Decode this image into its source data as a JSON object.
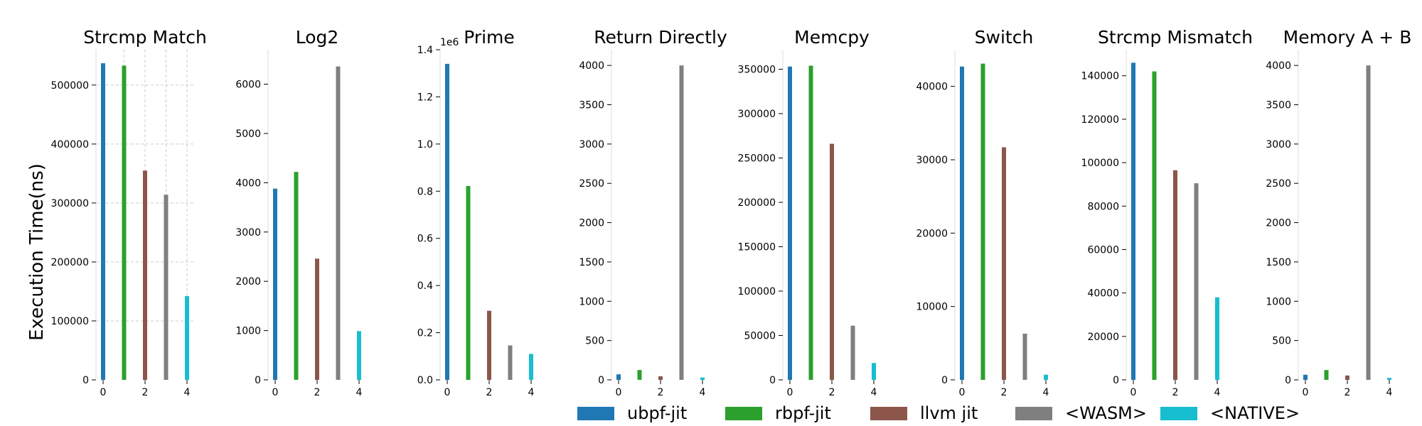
{
  "figure": {
    "ylabel": "Execution Time(ns)",
    "legend_placement": "bottom-center"
  },
  "legend": [
    {
      "label": "ubpf-jit",
      "color": "#1f77b4"
    },
    {
      "label": "rbpf-jit",
      "color": "#2ca02c"
    },
    {
      "label": "llvm jit",
      "color": "#8c564b"
    },
    {
      "label": "<WASM>",
      "color": "#7f7f7f"
    },
    {
      "label": "<NATIVE>",
      "color": "#17becf"
    }
  ],
  "chart_data": [
    {
      "type": "bar",
      "title": "Strcmp Match",
      "x": [
        0,
        1,
        2,
        3,
        4
      ],
      "values": [
        537000,
        533000,
        355000,
        314000,
        142000
      ],
      "ylim": [
        0,
        560000
      ],
      "yticks": [
        0,
        100000,
        200000,
        300000,
        400000,
        500000
      ],
      "ytick_labels": [
        "0",
        "100000",
        "200000",
        "300000",
        "400000",
        "500000"
      ],
      "xticks": [
        "0",
        "2",
        "4"
      ],
      "grid": true,
      "ylabel": "Execution Time(ns)"
    },
    {
      "type": "bar",
      "title": "Log2",
      "x": [
        0,
        1,
        2,
        3,
        4
      ],
      "values": [
        3880,
        4220,
        2460,
        6360,
        990
      ],
      "ylim": [
        0,
        6700
      ],
      "yticks": [
        0,
        1000,
        2000,
        3000,
        4000,
        5000,
        6000
      ],
      "ytick_labels": [
        "0",
        "1000",
        "2000",
        "3000",
        "4000",
        "5000",
        "6000"
      ],
      "xticks": [
        "0",
        "2",
        "4"
      ],
      "grid": false
    },
    {
      "type": "bar",
      "title": "Prime",
      "x": [
        0,
        1,
        2,
        3,
        4
      ],
      "values": [
        1340000,
        822000,
        293000,
        146000,
        110000
      ],
      "ylim": [
        0,
        1400000
      ],
      "yticks": [
        0,
        200000,
        400000,
        600000,
        800000,
        1000000,
        1200000,
        1400000
      ],
      "ytick_labels": [
        "0.0",
        "0.2",
        "0.4",
        "0.6",
        "0.8",
        "1.0",
        "1.2",
        "1.4"
      ],
      "offset_label": "1e6",
      "xticks": [
        "0",
        "2",
        "4"
      ],
      "grid": false
    },
    {
      "type": "bar",
      "title": "Return Directly",
      "x": [
        0,
        1,
        2,
        3,
        4
      ],
      "values": [
        70,
        125,
        45,
        4000,
        30
      ],
      "ylim": [
        0,
        4200
      ],
      "yticks": [
        0,
        500,
        1000,
        1500,
        2000,
        2500,
        3000,
        3500,
        4000
      ],
      "ytick_labels": [
        "0",
        "500",
        "1000",
        "1500",
        "2000",
        "2500",
        "3000",
        "3500",
        "4000"
      ],
      "xticks": [
        "0",
        "2",
        "4"
      ],
      "grid": false
    },
    {
      "type": "bar",
      "title": "Memcpy",
      "x": [
        0,
        1,
        2,
        3,
        4
      ],
      "values": [
        353000,
        354000,
        266000,
        61000,
        19000
      ],
      "ylim": [
        0,
        372000
      ],
      "yticks": [
        0,
        50000,
        100000,
        150000,
        200000,
        250000,
        300000,
        350000
      ],
      "ytick_labels": [
        "0",
        "50000",
        "100000",
        "150000",
        "200000",
        "250000",
        "300000",
        "350000"
      ],
      "xticks": [
        "0",
        "2",
        "4"
      ],
      "grid": false
    },
    {
      "type": "bar",
      "title": "Switch",
      "x": [
        0,
        1,
        2,
        3,
        4
      ],
      "values": [
        42700,
        43100,
        31700,
        6300,
        700
      ],
      "ylim": [
        0,
        45000
      ],
      "yticks": [
        0,
        10000,
        20000,
        30000,
        40000
      ],
      "ytick_labels": [
        "0",
        "10000",
        "20000",
        "30000",
        "40000"
      ],
      "xticks": [
        "0",
        "2",
        "4"
      ],
      "grid": false
    },
    {
      "type": "bar",
      "title": "Strcmp Mismatch",
      "x": [
        0,
        1,
        2,
        3,
        4
      ],
      "values": [
        146000,
        142000,
        96500,
        90500,
        38000
      ],
      "ylim": [
        0,
        152000
      ],
      "yticks": [
        0,
        20000,
        40000,
        60000,
        80000,
        100000,
        120000,
        140000
      ],
      "ytick_labels": [
        "0",
        "20000",
        "40000",
        "60000",
        "80000",
        "100000",
        "120000",
        "140000"
      ],
      "xticks": [
        "0",
        "2",
        "4"
      ],
      "grid": false
    },
    {
      "type": "bar",
      "title": "Memory A + B",
      "x": [
        0,
        1,
        2,
        3,
        4
      ],
      "values": [
        65,
        125,
        55,
        4000,
        25
      ],
      "ylim": [
        0,
        4200
      ],
      "yticks": [
        0,
        500,
        1000,
        1500,
        2000,
        2500,
        3000,
        3500,
        4000
      ],
      "ytick_labels": [
        "0",
        "500",
        "1000",
        "1500",
        "2000",
        "2500",
        "3000",
        "3500",
        "4000"
      ],
      "xticks": [
        "0",
        "2",
        "4"
      ],
      "grid": false
    }
  ]
}
